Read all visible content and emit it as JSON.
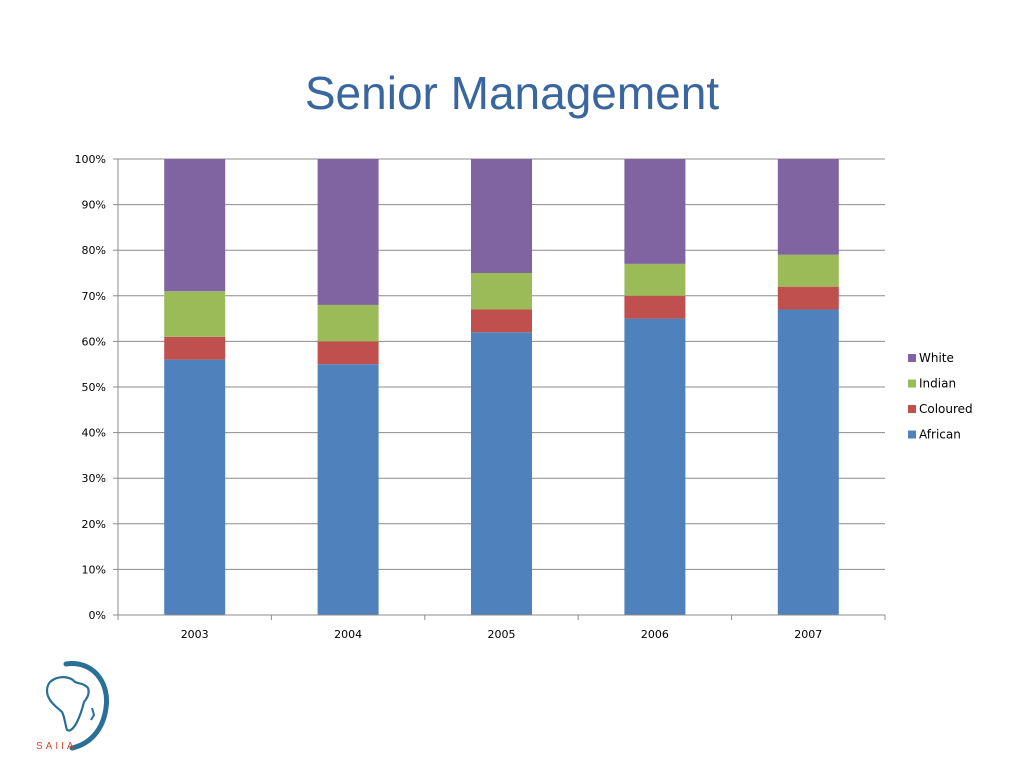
{
  "slide": {
    "title": "Senior Management"
  },
  "logo": {
    "text": "SAIIA"
  },
  "chart_data": {
    "type": "bar",
    "stacked": "percent",
    "categories": [
      "2003",
      "2004",
      "2005",
      "2006",
      "2007"
    ],
    "series": [
      {
        "name": "African",
        "color": "#4f81bd",
        "values": [
          56,
          55,
          62,
          65,
          67
        ]
      },
      {
        "name": "Coloured",
        "color": "#c0504d",
        "values": [
          5,
          5,
          5,
          5,
          5
        ]
      },
      {
        "name": "Indian",
        "color": "#9bbb59",
        "values": [
          10,
          8,
          8,
          7,
          7
        ]
      },
      {
        "name": "White",
        "color": "#8064a2",
        "values": [
          29,
          32,
          25,
          23,
          21
        ]
      }
    ],
    "ylim": [
      0,
      100
    ],
    "yticks": [
      "0%",
      "10%",
      "20%",
      "30%",
      "40%",
      "50%",
      "60%",
      "70%",
      "80%",
      "90%",
      "100%"
    ],
    "grid": true,
    "legend_position": "right"
  }
}
